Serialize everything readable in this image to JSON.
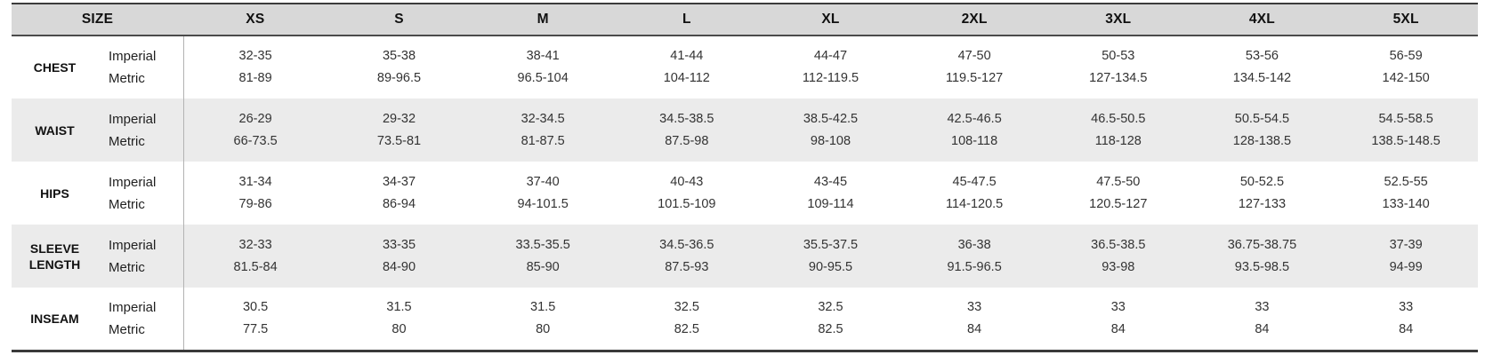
{
  "chart_data": {
    "type": "table",
    "corner_header": "SIZE",
    "size_columns": [
      "XS",
      "S",
      "M",
      "L",
      "XL",
      "2XL",
      "3XL",
      "4XL",
      "5XL"
    ],
    "unit_row_labels": [
      "Imperial",
      "Metric"
    ],
    "measurements": [
      {
        "name": "CHEST",
        "imperial": [
          "32-35",
          "35-38",
          "38-41",
          "41-44",
          "44-47",
          "47-50",
          "50-53",
          "53-56",
          "56-59"
        ],
        "metric": [
          "81-89",
          "89-96.5",
          "96.5-104",
          "104-112",
          "112-119.5",
          "119.5-127",
          "127-134.5",
          "134.5-142",
          "142-150"
        ]
      },
      {
        "name": "WAIST",
        "imperial": [
          "26-29",
          "29-32",
          "32-34.5",
          "34.5-38.5",
          "38.5-42.5",
          "42.5-46.5",
          "46.5-50.5",
          "50.5-54.5",
          "54.5-58.5"
        ],
        "metric": [
          "66-73.5",
          "73.5-81",
          "81-87.5",
          "87.5-98",
          "98-108",
          "108-118",
          "118-128",
          "128-138.5",
          "138.5-148.5"
        ]
      },
      {
        "name": "HIPS",
        "imperial": [
          "31-34",
          "34-37",
          "37-40",
          "40-43",
          "43-45",
          "45-47.5",
          "47.5-50",
          "50-52.5",
          "52.5-55"
        ],
        "metric": [
          "79-86",
          "86-94",
          "94-101.5",
          "101.5-109",
          "109-114",
          "114-120.5",
          "120.5-127",
          "127-133",
          "133-140"
        ]
      },
      {
        "name": "SLEEVE LENGTH",
        "imperial": [
          "32-33",
          "33-35",
          "33.5-35.5",
          "34.5-36.5",
          "35.5-37.5",
          "36-38",
          "36.5-38.5",
          "36.75-38.75",
          "37-39"
        ],
        "metric": [
          "81.5-84",
          "84-90",
          "85-90",
          "87.5-93",
          "90-95.5",
          "91.5-96.5",
          "93-98",
          "93.5-98.5",
          "94-99"
        ]
      },
      {
        "name": "INSEAM",
        "imperial": [
          "30.5",
          "31.5",
          "31.5",
          "32.5",
          "32.5",
          "33",
          "33",
          "33",
          "33"
        ],
        "metric": [
          "77.5",
          "80",
          "80",
          "82.5",
          "82.5",
          "84",
          "84",
          "84",
          "84"
        ]
      }
    ]
  },
  "colors": {
    "header_bg": "#d8d8d8",
    "stripe_bg": "#ebebeb",
    "border_dark": "#3b3b3b",
    "divider": "#b3b3b3",
    "header_text": "#111111",
    "value_text": "#333333"
  }
}
